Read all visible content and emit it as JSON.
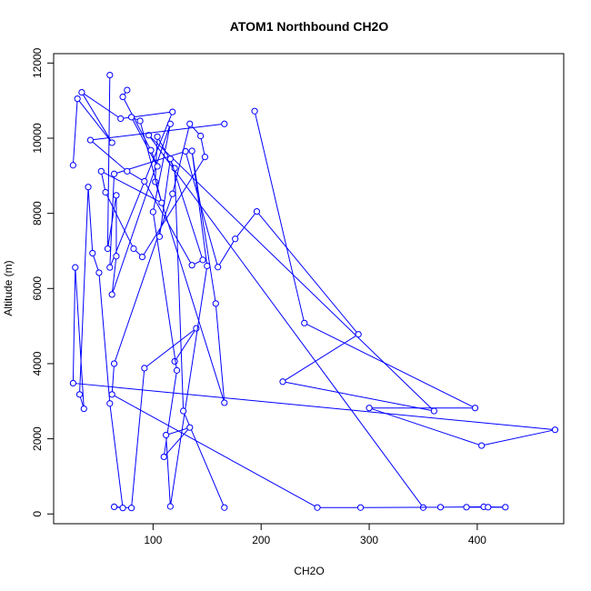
{
  "chart_data": {
    "type": "line",
    "title": "ATOM1 Northbound CH2O",
    "xlabel": "CH2O",
    "ylabel": "Altitude (m)",
    "xlim": [
      8,
      480
    ],
    "ylim": [
      -260,
      12250
    ],
    "x_ticks": [
      100,
      200,
      300,
      400
    ],
    "y_ticks": [
      0,
      2000,
      4000,
      6000,
      8000,
      10000,
      12000
    ],
    "series_color": "#0000FF",
    "marker": "open-circle",
    "grid": false,
    "legend": "none",
    "series": [
      {
        "x": [
          26,
          30,
          62,
          34,
          70,
          118,
          60,
          64,
          130,
          160,
          176,
          196,
          290,
          220,
          360,
          96,
          350
        ],
        "y": [
          9280,
          11050,
          9880,
          11220,
          10520,
          10700,
          6560,
          9050,
          9650,
          6570,
          7320,
          8050,
          4780,
          3520,
          2740,
          10080,
          170
        ]
      },
      {
        "x": [
          194,
          240,
          398,
          300,
          404,
          472,
          26,
          28,
          36,
          32,
          40,
          44,
          50,
          60,
          72,
          64,
          80,
          92,
          140,
          120
        ],
        "y": [
          10720,
          5080,
          2820,
          2820,
          1820,
          2240,
          3480,
          6560,
          2800,
          3180,
          8700,
          6940,
          6420,
          2940,
          160,
          190,
          160,
          3880,
          4940,
          4060
        ]
      },
      {
        "x": [
          60,
          58,
          66,
          66,
          62,
          116,
          100,
          122,
          110,
          134,
          112,
          116,
          150,
          136,
          158,
          166,
          102,
          104,
          120,
          128,
          166
        ],
        "y": [
          11680,
          7060,
          8480,
          6860,
          5840,
          10380,
          8040,
          3820,
          1520,
          2300,
          2100,
          200,
          6600,
          9660,
          5600,
          2960,
          8840,
          10040,
          9200,
          2740,
          170
        ]
      },
      {
        "x": [
          76,
          72,
          98,
          104,
          80,
          88,
          108,
          52,
          56,
          82,
          90,
          148,
          144,
          134,
          118,
          64,
          62,
          252,
          292,
          366,
          406,
          426,
          410,
          390
        ],
        "y": [
          11280,
          11100,
          9680,
          9250,
          10560,
          10460,
          8280,
          9120,
          8560,
          7060,
          6840,
          9500,
          10060,
          10380,
          8520,
          4000,
          3180,
          170,
          170,
          180,
          190,
          180,
          180,
          180
        ]
      },
      {
        "x": [
          166,
          42,
          76,
          92,
          136,
          146,
          116,
          106
        ],
        "y": [
          10380,
          9950,
          9120,
          8850,
          6620,
          6760,
          9450,
          7380
        ]
      }
    ]
  }
}
